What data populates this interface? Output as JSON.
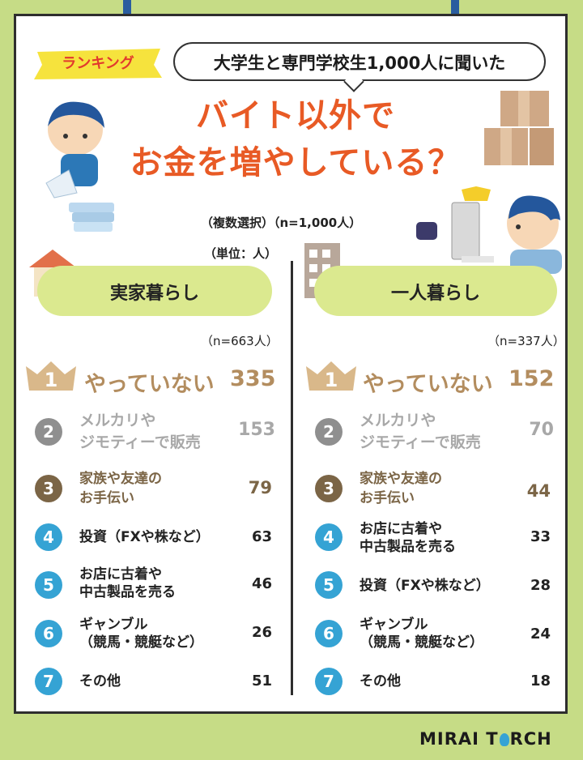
{
  "header": {
    "ranking_tag": "ランキング",
    "bubble": "大学生と専門学校生1,000人に聞いた",
    "headline_line1": "バイト以外で",
    "headline_line2": "お金を増やしている？",
    "subnote": "（複数選択）（n=1,000人）",
    "unit": "（単位：人）"
  },
  "left": {
    "title": "実家暮らし",
    "n": "（n=663人）",
    "ranks": [
      {
        "rank": "1",
        "label": "やっていない",
        "value": "335"
      },
      {
        "rank": "2",
        "label1": "メルカリや",
        "label2": "ジモティーで販売",
        "value": "153"
      },
      {
        "rank": "3",
        "label1": "家族や友達の",
        "label2": "お手伝い",
        "value": "79"
      },
      {
        "rank": "4",
        "label1": "投資（FXや株など）",
        "value": "63"
      },
      {
        "rank": "5",
        "label1": "お店に古着や",
        "label2": "中古製品を売る",
        "value": "46"
      },
      {
        "rank": "6",
        "label1": "ギャンブル",
        "label2": "（競馬・競艇など）",
        "value": "26"
      },
      {
        "rank": "7",
        "label1": "その他",
        "value": "51"
      }
    ]
  },
  "right": {
    "title": "一人暮らし",
    "n": "（n=337人）",
    "ranks": [
      {
        "rank": "1",
        "label": "やっていない",
        "value": "152"
      },
      {
        "rank": "2",
        "label1": "メルカリや",
        "label2": "ジモティーで販売",
        "value": "70"
      },
      {
        "rank": "3",
        "label1": "家族や友達の",
        "label2": "お手伝い",
        "value": "44"
      },
      {
        "rank": "4",
        "label1": "お店に古着や",
        "label2": "中古製品を売る",
        "value": "33"
      },
      {
        "rank": "5",
        "label1": "投資（FXや株など）",
        "value": "28"
      },
      {
        "rank": "6",
        "label1": "ギャンブル",
        "label2": "（競馬・競艇など）",
        "value": "24"
      },
      {
        "rank": "7",
        "label1": "その他",
        "value": "18"
      }
    ]
  },
  "footer": {
    "logo_left": "MIRAI T",
    "logo_right": "RCH"
  },
  "colors": {
    "headline": "#e85a25",
    "accent_green": "#c6dc86",
    "pill": "#dbe98f",
    "gold": "#b38d5f",
    "blue": "#35a3d4",
    "brown": "#7b6546",
    "gray": "#8f8f8f"
  }
}
